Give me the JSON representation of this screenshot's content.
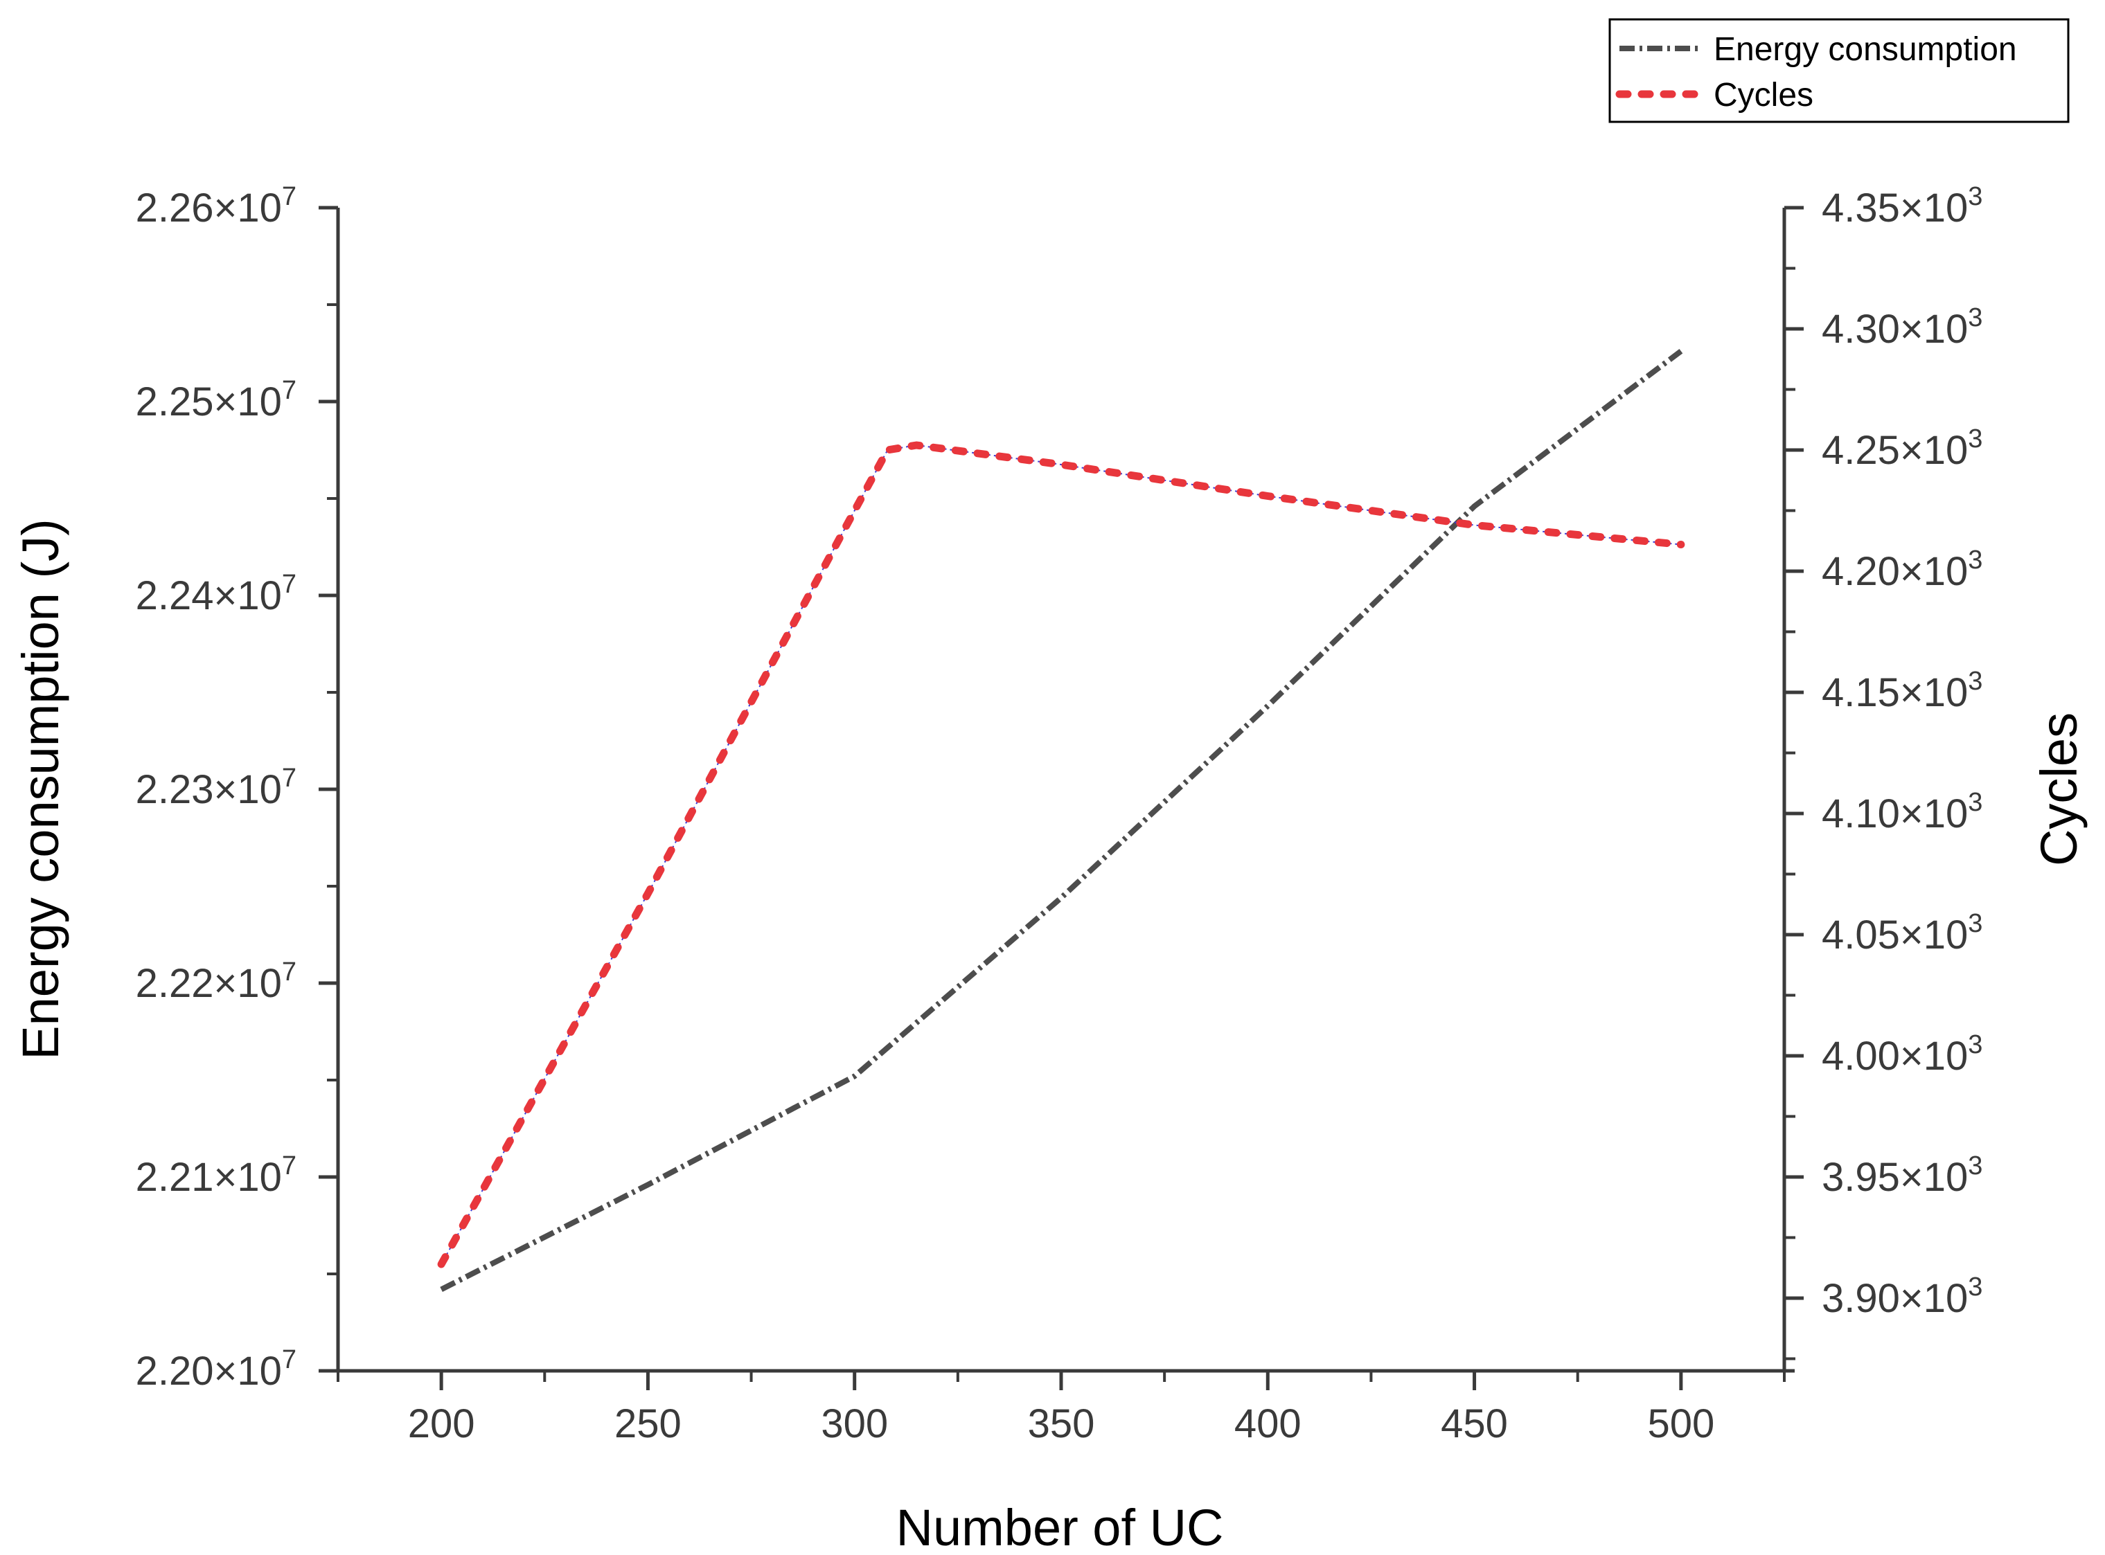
{
  "chart_data": {
    "type": "line",
    "title": "",
    "xlabel": "Number of UC",
    "ylabel": "Energy consumption (J)",
    "y2label": "Cycles",
    "xlim": [
      175,
      525
    ],
    "ylim": [
      22000000,
      22600000
    ],
    "y2lim": [
      3870,
      4350
    ],
    "x_ticks": [
      200,
      250,
      300,
      350,
      400,
      450,
      500
    ],
    "y_ticks": [
      {
        "value": 22000000,
        "mantissa": "2.20",
        "exponent": "7"
      },
      {
        "value": 22100000,
        "mantissa": "2.21",
        "exponent": "7"
      },
      {
        "value": 22200000,
        "mantissa": "2.22",
        "exponent": "7"
      },
      {
        "value": 22300000,
        "mantissa": "2.23",
        "exponent": "7"
      },
      {
        "value": 22400000,
        "mantissa": "2.24",
        "exponent": "7"
      },
      {
        "value": 22500000,
        "mantissa": "2.25",
        "exponent": "7"
      },
      {
        "value": 22600000,
        "mantissa": "2.26",
        "exponent": "7"
      }
    ],
    "y2_ticks": [
      {
        "value": 3900,
        "mantissa": "3.90",
        "exponent": "3"
      },
      {
        "value": 3950,
        "mantissa": "3.95",
        "exponent": "3"
      },
      {
        "value": 4000,
        "mantissa": "4.00",
        "exponent": "3"
      },
      {
        "value": 4050,
        "mantissa": "4.05",
        "exponent": "3"
      },
      {
        "value": 4100,
        "mantissa": "4.10",
        "exponent": "3"
      },
      {
        "value": 4150,
        "mantissa": "4.15",
        "exponent": "3"
      },
      {
        "value": 4200,
        "mantissa": "4.20",
        "exponent": "3"
      },
      {
        "value": 4250,
        "mantissa": "4.25",
        "exponent": "3"
      },
      {
        "value": 4300,
        "mantissa": "4.30",
        "exponent": "3"
      },
      {
        "value": 4350,
        "mantissa": "4.35",
        "exponent": "3"
      }
    ],
    "times_symbol": "×10",
    "legend_position": "top-right",
    "grid": false,
    "series": [
      {
        "name": "Energy consumption",
        "axis": "left",
        "color": "#4d4d4d",
        "style": "dash-dot",
        "x": [
          200,
          250,
          300,
          350,
          400,
          450,
          500
        ],
        "y": [
          22042000,
          22096000,
          22152000,
          22244000,
          22343000,
          22446000,
          22526000
        ]
      },
      {
        "name": "Cycles",
        "axis": "right",
        "color": "#e8363c",
        "style": "dotted",
        "x": [
          200,
          250,
          300,
          308,
          315,
          350,
          400,
          450,
          500
        ],
        "y": [
          3914,
          4067,
          4225,
          4250,
          4252,
          4244,
          4231,
          4219,
          4211
        ]
      }
    ]
  }
}
